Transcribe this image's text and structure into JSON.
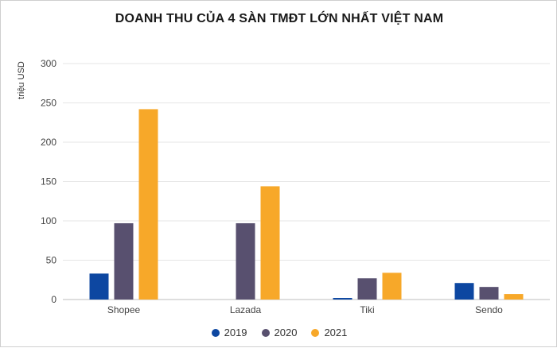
{
  "chart_data": {
    "type": "bar",
    "title": "DOANH THU CỦA 4 SÀN TMĐT LỚN NHẤT VIỆT NAM",
    "ylabel": "triệu USD",
    "xlabel": "",
    "ylim": [
      0,
      300
    ],
    "yticks": [
      0,
      50,
      100,
      150,
      200,
      250,
      300
    ],
    "grid": true,
    "legend_position": "bottom",
    "categories": [
      "Shopee",
      "Lazada",
      "Tiki",
      "Sendo"
    ],
    "series": [
      {
        "name": "2019",
        "color": "#0d47a1",
        "values": [
          33,
          0,
          2,
          21
        ]
      },
      {
        "name": "2020",
        "color": "#58506f",
        "values": [
          97,
          97,
          27,
          16
        ]
      },
      {
        "name": "2021",
        "color": "#f7a829",
        "values": [
          242,
          144,
          34,
          7
        ]
      }
    ]
  }
}
